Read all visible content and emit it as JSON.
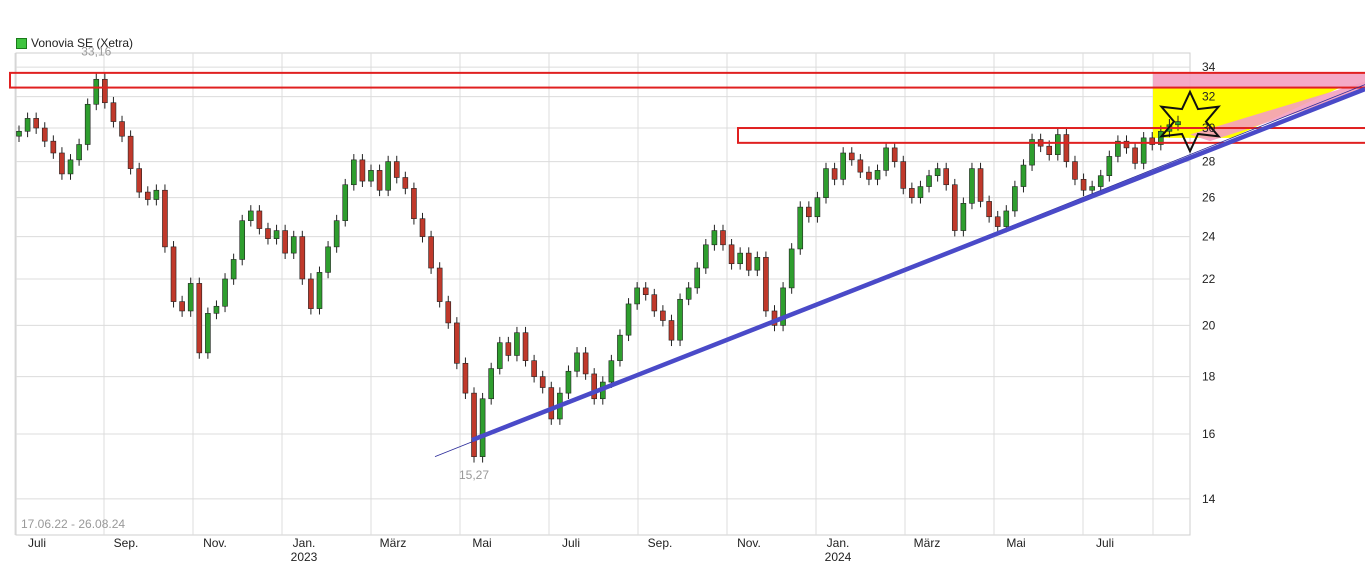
{
  "chart_data": {
    "type": "candlestick",
    "title": "Vonovia SE (Xetra)",
    "date_range_label": "17.06.22 - 26.08.24",
    "y_scale": "log",
    "ylim": [
      13,
      35
    ],
    "y_ticks": [
      14,
      16,
      18,
      20,
      22,
      24,
      26,
      28,
      30,
      32,
      34
    ],
    "x_tick_labels": [
      "Juli",
      "Sep.",
      "Nov.",
      "Jan.",
      "März",
      "Mai",
      "Juli",
      "Sep.",
      "Nov.",
      "Jan.",
      "März",
      "Mai",
      "Juli"
    ],
    "year_labels": [
      "2023",
      "2024"
    ],
    "grid": true,
    "legend_position": "top-left",
    "colors": {
      "up": "#2e9e2e",
      "down": "#c0392b",
      "grid": "#dcdcdc",
      "trendline": "#4a4ac8",
      "resistance_box": "#e02020",
      "projection_fill": "#ffff00",
      "projection_top": "#f4a0c0"
    },
    "series": [
      {
        "values": [
          29.8,
          30.6,
          30.0,
          29.2,
          28.5,
          27.3,
          28.1,
          29.0,
          31.5,
          33.16,
          31.6,
          30.4,
          29.5,
          27.6,
          26.3,
          25.9,
          26.4,
          23.5,
          21.0,
          20.6,
          21.8,
          18.9,
          20.5,
          20.8,
          22.0,
          22.9,
          24.8,
          25.3,
          24.4,
          23.9,
          24.3,
          23.2,
          24.0,
          22.0,
          20.7,
          22.3,
          23.5,
          24.8,
          26.7,
          28.1,
          26.9,
          27.5,
          26.4,
          28.0,
          27.1,
          26.5,
          24.9,
          24.0,
          22.5,
          21.0,
          20.1,
          18.5,
          17.4,
          15.27,
          17.2,
          18.3,
          19.3,
          18.8,
          19.7,
          18.6,
          18.0,
          17.6,
          16.5,
          17.4,
          18.2,
          18.9,
          18.1,
          17.2,
          17.8,
          18.6,
          19.6,
          20.9,
          21.6,
          21.3,
          20.6,
          20.2,
          19.4,
          21.1,
          21.6,
          22.5,
          23.6,
          24.3,
          23.6,
          22.7,
          23.2,
          22.4,
          23.0,
          20.6,
          20.0,
          21.6,
          23.4,
          25.5,
          25.0,
          26.0,
          27.6,
          27.0,
          28.5,
          28.1,
          27.4,
          27.0,
          27.5,
          28.8,
          28.0,
          26.5,
          26.0,
          26.6,
          27.2,
          27.6,
          26.7,
          24.3,
          25.7,
          27.6,
          25.8,
          25.0,
          24.5,
          25.3,
          26.6,
          27.8,
          29.3,
          28.9,
          28.4,
          29.6,
          28.0,
          27.0,
          26.4,
          26.6,
          27.2,
          28.3,
          29.2,
          28.8,
          27.9,
          29.4,
          29.0,
          29.8,
          30.2,
          30.4
        ]
      }
    ],
    "annotations": [
      {
        "text": "33,16"
      },
      {
        "text": "15,27"
      }
    ]
  }
}
